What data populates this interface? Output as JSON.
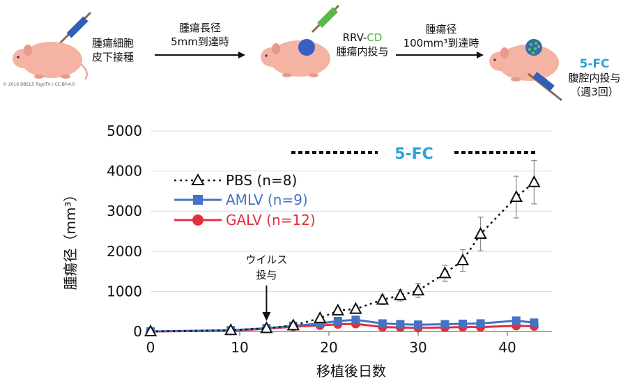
{
  "schematic": {
    "copyright": "© 2016 DBCLS TogoTV / CC-BY-4.0",
    "step1": [
      "腫瘍細胞",
      "皮下接種"
    ],
    "arrow1": [
      "腫瘍長径",
      "5mm到達時"
    ],
    "step2_line1_prefix": "RRV-",
    "step2_line1_cd": "CD",
    "step2_line2": "腫瘍内投与",
    "arrow2": [
      "腫瘍径",
      "100mm³到達時"
    ],
    "step3": [
      "5-FC",
      "腹腔内投与",
      "（週3回）"
    ]
  },
  "chart_data": {
    "type": "line",
    "xlabel": "移植後日数",
    "ylabel": "腫瘍径（mm³）",
    "xlim": [
      0,
      45
    ],
    "ylim": [
      0,
      5000
    ],
    "xticks": [
      0,
      10,
      20,
      30,
      40
    ],
    "yticks": [
      0,
      1000,
      2000,
      3000,
      4000,
      5000
    ],
    "annotation_virus": [
      "ウイルス",
      "投与"
    ],
    "annotation_virus_day": 13,
    "annotation_5fc": "5-FC",
    "series": [
      {
        "name": "PBS (n=8)",
        "color": "#111111",
        "marker": "triangle-open",
        "dash": true,
        "x": [
          0,
          9,
          13,
          16,
          19,
          21,
          23,
          26,
          28,
          30,
          33,
          35,
          37,
          41,
          43
        ],
        "y": [
          0,
          30,
          80,
          150,
          330,
          520,
          560,
          790,
          900,
          1020,
          1450,
          1770,
          2430,
          3350,
          3720
        ],
        "err": [
          0,
          10,
          20,
          30,
          50,
          70,
          80,
          120,
          140,
          170,
          200,
          270,
          420,
          520,
          540
        ]
      },
      {
        "name": "AMLV (n=9)",
        "color": "#4472c4",
        "marker": "square",
        "dash": false,
        "x": [
          0,
          9,
          13,
          16,
          19,
          21,
          23,
          26,
          28,
          30,
          33,
          35,
          37,
          41,
          43
        ],
        "y": [
          0,
          30,
          80,
          140,
          200,
          260,
          290,
          200,
          180,
          170,
          180,
          190,
          200,
          270,
          220
        ]
      },
      {
        "name": "GALV (n=12)",
        "color": "#e0303c",
        "marker": "circle",
        "dash": false,
        "x": [
          0,
          9,
          13,
          16,
          19,
          21,
          23,
          26,
          28,
          30,
          33,
          35,
          37,
          41,
          43
        ],
        "y": [
          0,
          20,
          70,
          120,
          150,
          180,
          190,
          110,
          100,
          90,
          100,
          110,
          110,
          140,
          130
        ]
      }
    ]
  }
}
